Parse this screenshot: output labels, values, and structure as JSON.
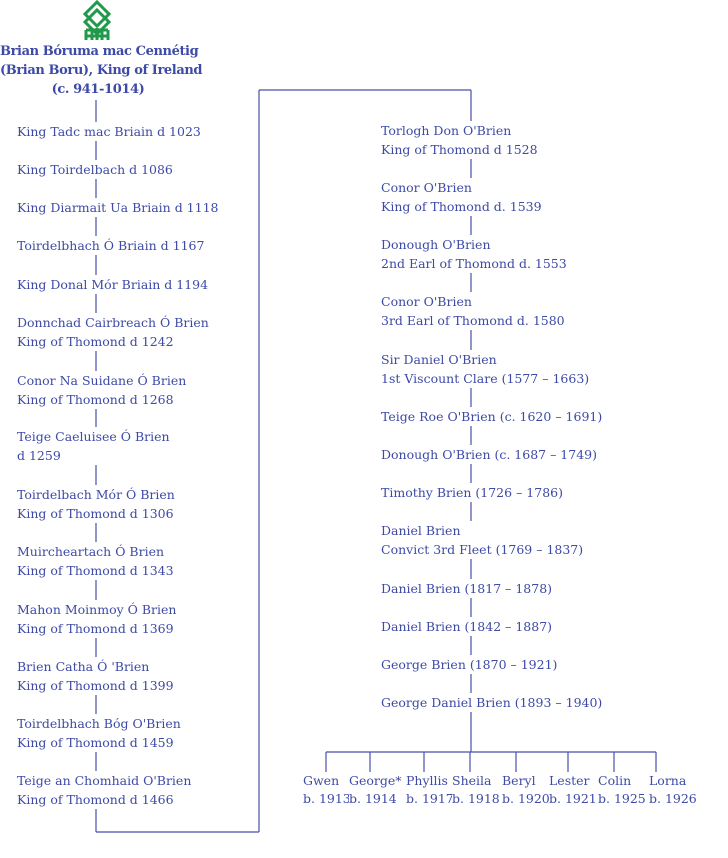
{
  "colors": {
    "text": "#3d4aa6",
    "line": "#4a4fa8",
    "logo": "#1f9a4a"
  },
  "logo_icon": "celtic-knot-icon",
  "title": {
    "line1": "Brian Bóruma mac Cennétig",
    "line2": "(Brian Boru),  King of Ireland",
    "line3": "(c. 941-1014)"
  },
  "left_column": [
    {
      "line1": "King Tadc mac Briain d 1023",
      "line2": ""
    },
    {
      "line1": "King Toirdelbach  d 1086",
      "line2": ""
    },
    {
      "line1": "King Diarmait Ua Briain d 1118",
      "line2": ""
    },
    {
      "line1": "Toirdelbhach Ó Briain d 1167",
      "line2": ""
    },
    {
      "line1": "King Donal  Mór Briain d 1194",
      "line2": ""
    },
    {
      "line1": "Donnchad  Cairbreach  Ó Brien",
      "line2": "King of Thomond  d 1242"
    },
    {
      "line1": "Conor Na Suidane Ó Brien",
      "line2": "King of Thomond  d 1268"
    },
    {
      "line1": "Teige Caeluisee   Ó Brien",
      "line2": "d 1259"
    },
    {
      "line1": "Toirdelbach Mór Ó Brien",
      "line2": "King of Thomond  d 1306"
    },
    {
      "line1": "Muircheartach  Ó Brien",
      "line2": "King of Thomond  d 1343"
    },
    {
      "line1": "Mahon Moinmoy  Ó Brien",
      "line2": "King of Thomond  d 1369"
    },
    {
      "line1": "Brien Catha  Ó 'Brien",
      "line2": "King of Thomond  d 1399"
    },
    {
      "line1": "Toirdelbhach Bóg O'Brien",
      "line2": "King of Thomond  d 1459"
    },
    {
      "line1": "Teige an Chomhaid O'Brien",
      "line2": "King of Thomond  d 1466"
    }
  ],
  "right_column": [
    {
      "line1": "Torlogh  Don O'Brien",
      "line2": "King of Thomond  d 1528"
    },
    {
      "line1": "Conor O'Brien",
      "line2": "King of Thomond  d. 1539"
    },
    {
      "line1": "Donough O'Brien",
      "line2": "2nd Earl of Thomond  d. 1553"
    },
    {
      "line1": "Conor O'Brien",
      "line2": "3rd Earl of Thomond  d. 1580"
    },
    {
      "line1": "Sir Daniel O'Brien",
      "line2": "1st Viscount Clare (1577 – 1663)"
    },
    {
      "line1": "Teige Roe O'Brien (c. 1620 – 1691)",
      "line2": ""
    },
    {
      "line1": "Donough O'Brien (c. 1687 – 1749)",
      "line2": ""
    },
    {
      "line1": "Timothy Brien (1726 – 1786)",
      "line2": ""
    },
    {
      "line1": "Daniel Brien",
      "line2": "Convict 3rd Fleet  (1769 – 1837)"
    },
    {
      "line1": "Daniel Brien (1817 – 1878)",
      "line2": ""
    },
    {
      "line1": "Daniel Brien (1842 – 1887)",
      "line2": ""
    },
    {
      "line1": "George Brien (1870 – 1921)",
      "line2": ""
    },
    {
      "line1": "George Daniel Brien (1893 – 1940)",
      "line2": ""
    }
  ],
  "children": [
    {
      "name": "Gwen",
      "born": "b. 1913"
    },
    {
      "name": "George*",
      "born": "b. 1914"
    },
    {
      "name": "Phyllis",
      "born": "b. 1917"
    },
    {
      "name": "Sheila",
      "born": "b. 1918"
    },
    {
      "name": "Beryl",
      "born": "b. 1920"
    },
    {
      "name": "Lester",
      "born": "b. 1921"
    },
    {
      "name": "Colin",
      "born": "b. 1925"
    },
    {
      "name": "Lorna",
      "born": "b. 1926"
    }
  ]
}
